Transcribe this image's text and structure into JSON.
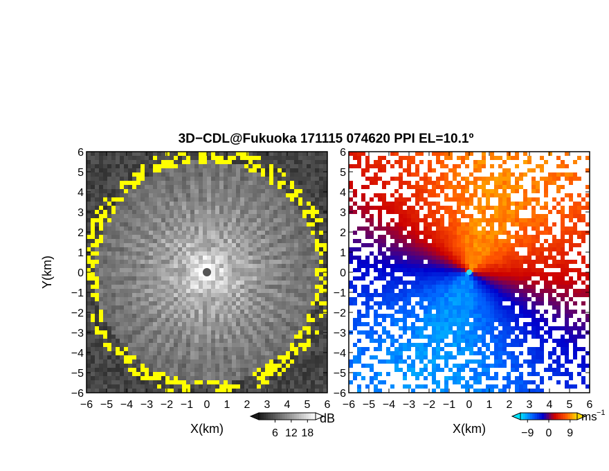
{
  "chart_data": {
    "title": "3D−CDL@Fukuoka 171115 074620 PPI EL=10.1º",
    "type": "heatmap",
    "panels": [
      {
        "id": "reflectivity",
        "xlabel": "X(km)",
        "ylabel": "Y(km)",
        "xlim": [
          -6,
          6
        ],
        "ylim": [
          -6,
          6
        ],
        "xticks": [
          "−6",
          "−5",
          "−4",
          "−3",
          "−2",
          "−1",
          "0",
          "1",
          "2",
          "3",
          "4",
          "5",
          "6"
        ],
        "yticks": [
          "6",
          "5",
          "4",
          "3",
          "2",
          "1",
          "0",
          "−1",
          "−2",
          "−3",
          "−4",
          "−5",
          "−6"
        ],
        "max_range_km": 6.0,
        "colorbar": {
          "unit": "dB",
          "ticks": [
            "6",
            "12",
            "18"
          ],
          "colors": [
            "#1a1a1a",
            "#ffffff"
          ],
          "min": 0,
          "max": 21
        },
        "highlight_color": "#ffff00"
      },
      {
        "id": "doppler_velocity",
        "xlabel": "X(km)",
        "xlim": [
          -6,
          6
        ],
        "ylim": [
          -6,
          6
        ],
        "xticks": [
          "−6",
          "−5",
          "−4",
          "−3",
          "−2",
          "−1",
          "0",
          "1",
          "2",
          "3",
          "4",
          "5",
          "6"
        ],
        "yticks": [
          "6",
          "5",
          "4",
          "3",
          "2",
          "1",
          "0",
          "−1",
          "−2",
          "−3",
          "−4",
          "−5",
          "−6"
        ],
        "colorbar": {
          "unit": "ms",
          "unit_exp": "−1",
          "ticks": [
            "−9",
            "0",
            "9"
          ],
          "colors": [
            "#00e5ff",
            "#0066ff",
            "#0000cc",
            "#cc0000",
            "#ff5500",
            "#ffdd00"
          ],
          "min": -12,
          "max": 12
        },
        "wind_direction_deg": 250,
        "max_speed": 10
      }
    ]
  }
}
